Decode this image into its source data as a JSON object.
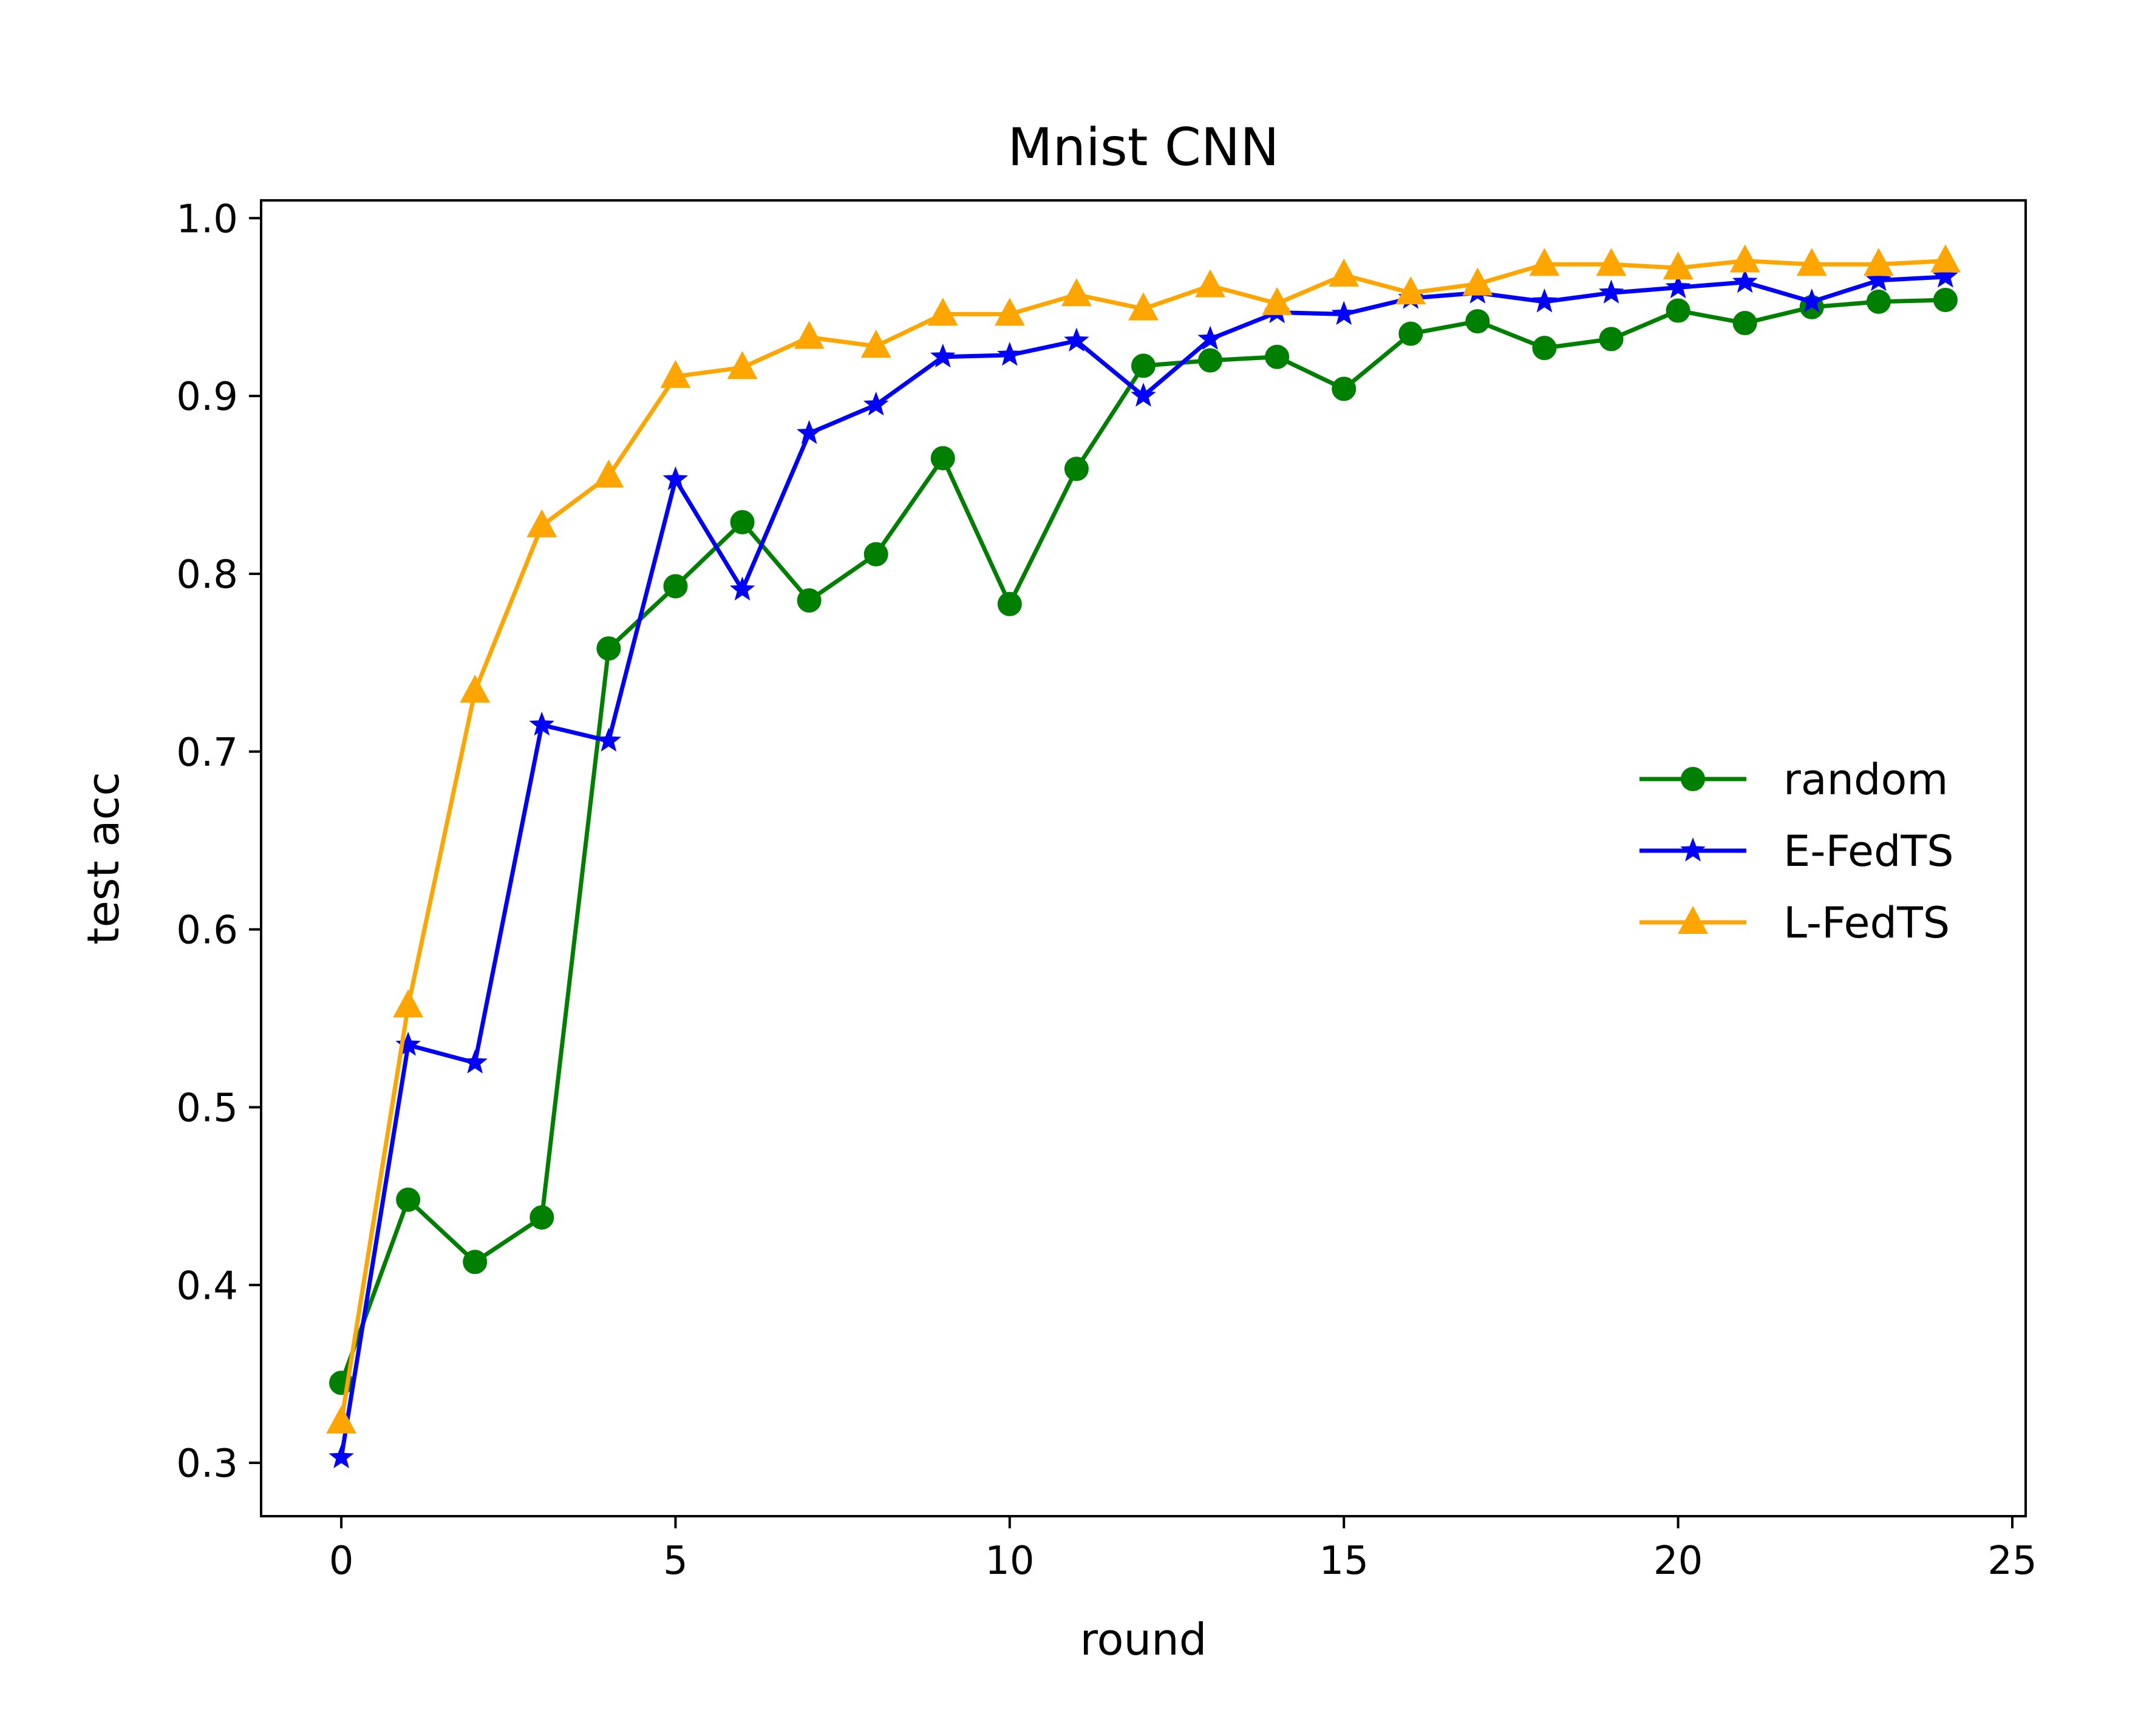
{
  "chart_data": {
    "type": "line",
    "title": "Mnist CNN",
    "xlabel": "round",
    "ylabel": "test acc",
    "xlim": [
      -1.2,
      25.2
    ],
    "ylim": [
      0.27,
      1.01
    ],
    "xticks": [
      0,
      5,
      10,
      15,
      20,
      25
    ],
    "yticks": [
      0.3,
      0.4,
      0.5,
      0.6,
      0.7,
      0.8,
      0.9,
      1.0
    ],
    "xtick_labels": [
      "0",
      "5",
      "10",
      "15",
      "20",
      "25"
    ],
    "ytick_labels": [
      "0.3",
      "0.4",
      "0.5",
      "0.6",
      "0.7",
      "0.8",
      "0.9",
      "1.0"
    ],
    "grid": false,
    "legend_position": "center-right",
    "x": [
      0,
      1,
      2,
      3,
      4,
      5,
      6,
      7,
      8,
      9,
      10,
      11,
      12,
      13,
      14,
      15,
      16,
      17,
      18,
      19,
      20,
      21,
      22,
      23,
      24
    ],
    "series": [
      {
        "name": "random",
        "color": "#008000",
        "marker": "circle",
        "values": [
          0.345,
          0.448,
          0.413,
          0.438,
          0.758,
          0.793,
          0.829,
          0.785,
          0.811,
          0.865,
          0.783,
          0.859,
          0.917,
          0.92,
          0.922,
          0.904,
          0.935,
          0.942,
          0.927,
          0.932,
          0.948,
          0.941,
          0.95,
          0.953,
          0.954
        ]
      },
      {
        "name": "E-FedTS",
        "color": "#0000ff",
        "marker": "star",
        "values": [
          0.303,
          0.535,
          0.525,
          0.715,
          0.706,
          0.853,
          0.791,
          0.879,
          0.895,
          0.922,
          0.923,
          0.931,
          0.9,
          0.932,
          0.947,
          0.946,
          0.955,
          0.958,
          0.953,
          0.958,
          0.961,
          0.964,
          0.953,
          0.965,
          0.967
        ]
      },
      {
        "name": "L-FedTS",
        "color": "#ffa500",
        "marker": "triangle",
        "values": [
          0.323,
          0.557,
          0.734,
          0.827,
          0.855,
          0.911,
          0.916,
          0.933,
          0.928,
          0.946,
          0.946,
          0.957,
          0.949,
          0.962,
          0.952,
          0.968,
          0.958,
          0.963,
          0.974,
          0.974,
          0.972,
          0.976,
          0.974,
          0.974,
          0.976
        ]
      }
    ]
  }
}
